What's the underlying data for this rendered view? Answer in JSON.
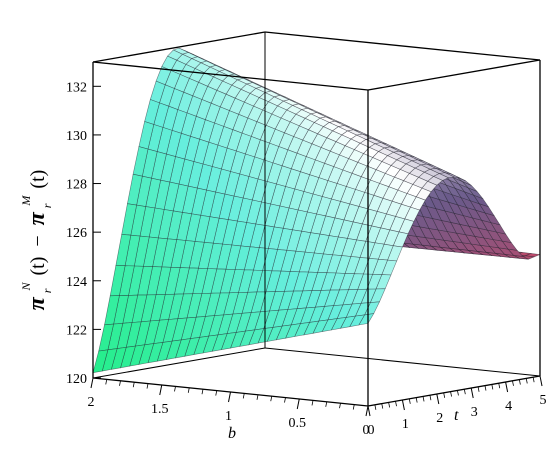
{
  "chart_data": {
    "type": "surface3d",
    "xlabel": "b",
    "ylabel": "t",
    "zlabel_parts": {
      "pi1": "π",
      "sup1": "N",
      "sub1": "r",
      "arg1": "(t)",
      "minus": "−",
      "pi2": "π",
      "sup2": "M",
      "sub2": "r",
      "arg2": "(t)"
    },
    "x_ticks": [
      "2",
      "1.5",
      "1",
      "0.5",
      "0"
    ],
    "y_ticks": [
      "0",
      "1",
      "2",
      "3",
      "4",
      "5"
    ],
    "z_ticks": [
      "120",
      "122",
      "124",
      "126",
      "128",
      "130",
      "132"
    ],
    "xlim": [
      0,
      2
    ],
    "ylim": [
      0,
      5
    ],
    "zlim": [
      120,
      133
    ],
    "grid_lines_b": 30,
    "grid_lines_t": 30,
    "surface_samples": {
      "description_points": [
        {
          "b": 2,
          "t": 0,
          "z": 120.0
        },
        {
          "b": 0,
          "t": 0,
          "z": 123.3
        },
        {
          "b": 2,
          "t": 5,
          "z": 125.2
        },
        {
          "b": 0,
          "t": 5,
          "z": 125.0
        },
        {
          "b": 1,
          "t": 2.5,
          "z": 132.5
        }
      ]
    },
    "colors": {
      "low": "#22ee88",
      "mid_low": "#66eedd",
      "mid": "#ffffff",
      "mid_high": "#6a5a8a",
      "high": "#c24a6a"
    }
  }
}
